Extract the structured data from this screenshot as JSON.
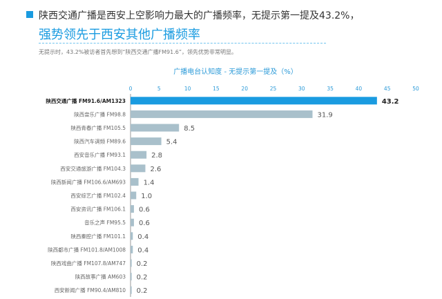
{
  "headline": {
    "line1": "陕西交通广播是西安上空影响力最大的广播频率，无提示第一提及43.2%，",
    "line2": "强势领先于西安其他广播频率"
  },
  "note": "无提示时，43.2%被访者首先想到“陕西交通广播FM91.6”，领先优势非常明显。",
  "colors": {
    "accent": "#1a9be0",
    "bar": "#a9c0cb",
    "bar_highlight": "#1a9be0"
  },
  "chart_data": {
    "type": "bar",
    "orientation": "horizontal",
    "title": "广播电台认知度 - 无提示第一提及（%）",
    "xlim": [
      0,
      50
    ],
    "xticks": [
      0,
      5,
      10,
      15,
      20,
      25,
      30,
      35,
      40,
      45,
      50
    ],
    "categories": [
      "陕西交通广播 FM91.6/AM1323",
      "陕西音乐广播 FM98.8",
      "陕西青春广播 FM105.5",
      "陕西汽车调频 FM89.6",
      "西安音乐广播 FM93.1",
      "西安交通旅游广播 FM104.3",
      "陕西新闻广播 FM106.6/AM693",
      "西安综艺广播 FM102.4",
      "西安资讯广播 FM106.1",
      "音乐之声 FM95.5",
      "陕西秦腔广播 FM101.1",
      "陕西都市广播 FM101.8/AM1008",
      "陕西戏曲广播 FM107.8/AM747",
      "陕西故事广播 AM603",
      "西安新闻广播 FM90.4/AM810"
    ],
    "values": [
      43.2,
      31.9,
      8.5,
      5.4,
      2.8,
      2.6,
      1.4,
      1.0,
      0.6,
      0.6,
      0.4,
      0.4,
      0.2,
      0.2,
      0.2
    ],
    "value_labels": [
      "43.2",
      "31.9",
      "8.5",
      "5.4",
      "2.8",
      "2.6",
      "1.4",
      "1.0",
      "0.6",
      "0.6",
      "0.4",
      "0.4",
      "0.2",
      "0.2",
      "0.2"
    ],
    "highlight_index": 0,
    "grid": false
  }
}
